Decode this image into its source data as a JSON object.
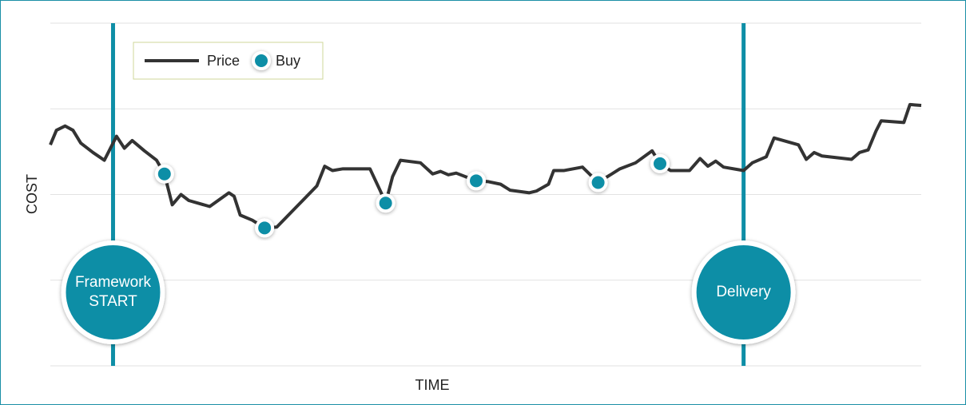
{
  "chart_data": {
    "type": "line",
    "x_label": "TIME",
    "y_label": "COST",
    "xlim": [
      0,
      100
    ],
    "ylim": [
      0,
      4
    ],
    "yticks": [
      0,
      1,
      2,
      3,
      4
    ],
    "grid": true,
    "legend": "top-left",
    "series": [
      {
        "name": "Price",
        "mode": "line",
        "color": "#333333",
        "x": [
          0,
          0.7,
          1.7,
          2.6,
          3.5,
          4.9,
          6.2,
          7.6,
          8.5,
          9.4,
          10.8,
          12.2,
          13.1,
          14.0,
          15.0,
          15.9,
          18.3,
          20.5,
          21.1,
          21.8,
          23.2,
          24.6,
          26.0,
          28.3,
          30.6,
          31.5,
          32.4,
          33.6,
          36.7,
          37.9,
          38.5,
          39.3,
          40.2,
          42.5,
          43.9,
          44.8,
          45.7,
          46.6,
          48.9,
          50.3,
          51.7,
          52.8,
          55.0,
          55.8,
          57.2,
          57.8,
          59.0,
          61.1,
          62.9,
          65.4,
          67.2,
          69.1,
          70.0,
          71.2,
          73.4,
          74.6,
          75.5,
          76.4,
          77.3,
          79.6,
          80.6,
          82.2,
          83.1,
          85.9,
          86.8,
          87.7,
          88.6,
          92.0,
          92.9,
          93.9,
          94.8,
          95.4,
          98.0,
          98.7,
          100
        ],
        "values": [
          2.58,
          2.75,
          2.8,
          2.75,
          2.6,
          2.49,
          2.4,
          2.68,
          2.54,
          2.63,
          2.51,
          2.4,
          2.24,
          1.88,
          2.0,
          1.93,
          1.86,
          2.02,
          1.98,
          1.76,
          1.7,
          1.61,
          1.62,
          1.86,
          2.1,
          2.33,
          2.28,
          2.3,
          2.3,
          2.04,
          1.9,
          2.21,
          2.4,
          2.37,
          2.24,
          2.27,
          2.23,
          2.25,
          2.16,
          2.15,
          2.12,
          2.05,
          2.02,
          2.04,
          2.12,
          2.28,
          2.28,
          2.32,
          2.14,
          2.3,
          2.37,
          2.51,
          2.36,
          2.28,
          2.28,
          2.42,
          2.33,
          2.39,
          2.32,
          2.28,
          2.37,
          2.44,
          2.66,
          2.58,
          2.41,
          2.49,
          2.45,
          2.41,
          2.49,
          2.52,
          2.74,
          2.86,
          2.84,
          3.05,
          3.04
        ]
      },
      {
        "name": "Buy",
        "mode": "markers",
        "color": "#0e8ea6",
        "x": [
          13.1,
          24.6,
          38.5,
          48.9,
          62.9,
          70.0
        ],
        "values": [
          2.24,
          1.61,
          1.9,
          2.16,
          2.14,
          2.36
        ]
      }
    ],
    "markers": [
      {
        "label": "Framework START",
        "x": 7.2,
        "color": "#0e8ea6"
      },
      {
        "label": "Delivery",
        "x": 79.6,
        "color": "#0e8ea6"
      }
    ]
  }
}
